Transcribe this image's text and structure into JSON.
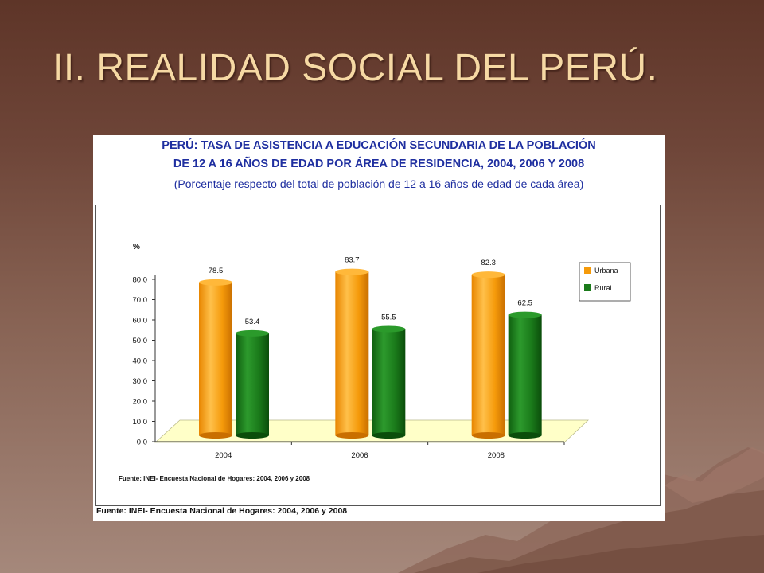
{
  "slide": {
    "title": "II. REALIDAD SOCIAL DEL PERÚ."
  },
  "chart_heading": {
    "line1": "PERÚ: TASA DE ASISTENCIA A EDUCACIÓN SECUNDARIA DE LA POBLACIÓN",
    "line2": "DE 12 A 16 AÑOS DE EDAD POR ÁREA DE RESIDENCIA, 2004, 2006 Y 2008",
    "line3": "(Porcentaje respecto del total de población de 12 a 16 años de edad de cada área)"
  },
  "chart_data": {
    "type": "bar",
    "categories": [
      "2004",
      "2006",
      "2008"
    ],
    "series": [
      {
        "name": "Urbana",
        "values": [
          78.5,
          83.7,
          82.3
        ],
        "color": "#f59a0a"
      },
      {
        "name": "Rural",
        "values": [
          53.4,
          55.5,
          62.5
        ],
        "color": "#1a7a1a"
      }
    ],
    "value_labels": [
      [
        "78.5",
        "83.7",
        "82.3"
      ],
      [
        "53.4",
        "55.5",
        "62.5"
      ]
    ],
    "ylabel": "%",
    "ylim": [
      0,
      80
    ],
    "yticks": [
      "0.0",
      "10.0",
      "20.0",
      "30.0",
      "40.0",
      "50.0",
      "60.0",
      "70.0",
      "80.0"
    ],
    "legend_position": "top-right",
    "grid": false,
    "floor_color": "#ffffc8",
    "inner_source": "Fuente: INEI- Encuesta Nacional de Hogares: 2004, 2006 y 2008"
  },
  "footer": {
    "source": "Fuente: INEI- Encuesta Nacional de Hogares: 2004, 2006 y 2008"
  }
}
